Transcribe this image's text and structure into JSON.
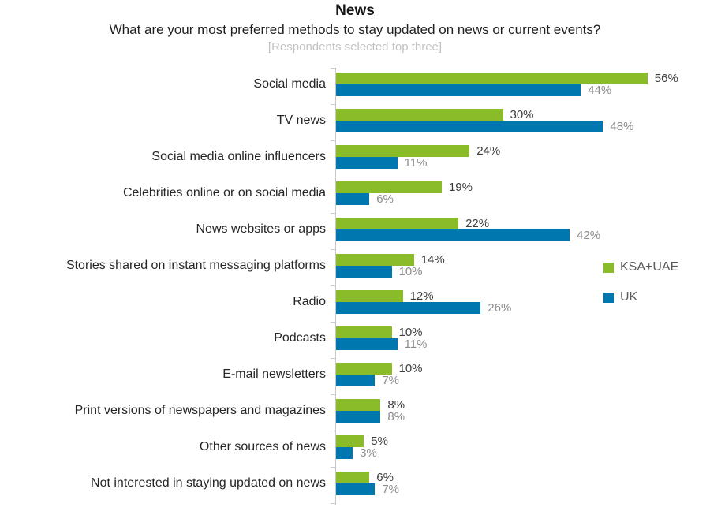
{
  "header": {
    "title": "News",
    "subtitle": "What are your most preferred methods to stay updated on news or current events?",
    "note": "[Respondents selected top three]"
  },
  "legend": {
    "items": [
      {
        "label": "KSA+UAE",
        "color": "#8abb29"
      },
      {
        "label": "UK",
        "color": "#0077ae"
      }
    ]
  },
  "chart_data": {
    "type": "bar",
    "orientation": "horizontal",
    "title": "News",
    "subtitle": "What are your most preferred methods to stay updated on news or current events?",
    "annotation": "[Respondents selected top three]",
    "categories": [
      "Social media",
      "TV news",
      "Social media online influencers",
      "Celebrities online or on social media",
      "News websites or apps",
      "Stories shared on instant messaging platforms",
      "Radio",
      "Podcasts",
      "E-mail newsletters",
      "Print versions of newspapers and magazines",
      "Other sources of news",
      "Not interested in staying updated on news"
    ],
    "series": [
      {
        "name": "KSA+UAE",
        "color": "#8abb29",
        "values": [
          56,
          30,
          24,
          19,
          22,
          14,
          12,
          10,
          10,
          8,
          5,
          6
        ]
      },
      {
        "name": "UK",
        "color": "#0077ae",
        "values": [
          44,
          48,
          11,
          6,
          42,
          10,
          26,
          11,
          7,
          8,
          3,
          7
        ]
      }
    ],
    "value_suffix": "%",
    "xlabel": "",
    "ylabel": "",
    "xlim": [
      0,
      60
    ],
    "grid": false,
    "legend_position": "right",
    "value_labels_shown": true,
    "axis_color": "#c9c9c9"
  }
}
